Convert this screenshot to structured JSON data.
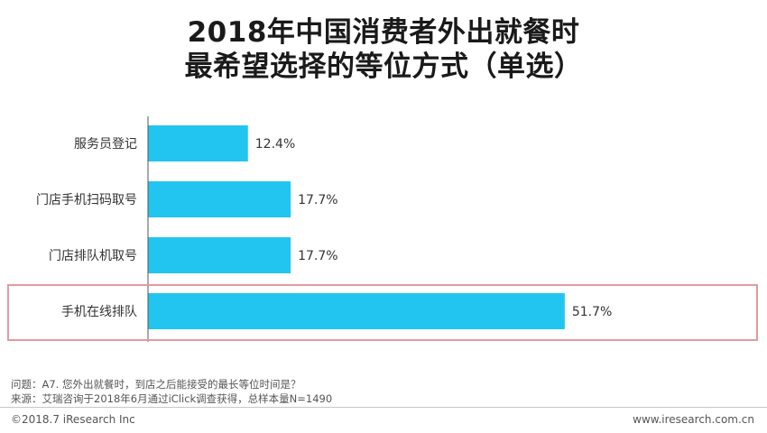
{
  "title": {
    "line1": "2018年中国消费者外出就餐时",
    "line2": "最希望选择的等位方式（单选）"
  },
  "chart_data": {
    "type": "bar",
    "orientation": "horizontal",
    "categories": [
      "服务员登记",
      "门店手机扫码取号",
      "门店排队机取号",
      "手机在线排队"
    ],
    "values": [
      12.4,
      17.7,
      17.7,
      51.7
    ],
    "value_labels": [
      "12.4%",
      "17.7%",
      "17.7%",
      "51.7%"
    ],
    "unit": "%",
    "highlighted_category": "手机在线排队",
    "bar_color": "#22c5ef",
    "highlight_color": "#e39aa0",
    "xlim": [
      0,
      60
    ]
  },
  "footnotes": {
    "question": "问题：A7. 您外出就餐时，到店之后能接受的最长等位时间是？",
    "source": "来源：艾瑞咨询于2018年6月通过iClick调查获得，总样本量N=1490"
  },
  "footer": {
    "copyright": "©2018.7 iResearch Inc",
    "website": "www.iresearch.com.cn"
  }
}
